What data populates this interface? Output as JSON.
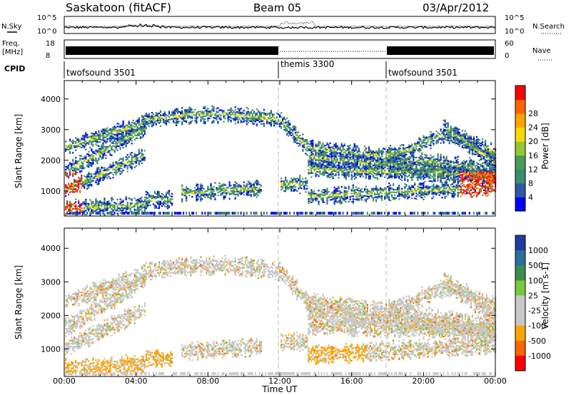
{
  "header": {
    "station": "Saskatoon (fitACF)",
    "beam": "Beam 05",
    "date": "03/Apr/2012"
  },
  "top_panel": {
    "left_label": "N.Sky",
    "right_label": "N.Search",
    "left_ticks": [
      "10^5",
      "10^0"
    ],
    "right_ticks": [
      "10^5",
      "10^0"
    ]
  },
  "freq_panel": {
    "left_label_1": "Freq.",
    "left_label_2": "[MHz]",
    "left_ticks": [
      "18",
      "8"
    ],
    "right_ticks": [
      "60",
      "0"
    ],
    "right_label": "Nave"
  },
  "cpid": {
    "label": "CPID",
    "segments": [
      {
        "name": "twofsound 3501",
        "start_hr": 0,
        "end_hr": 12
      },
      {
        "name": "themis 3300",
        "start_hr": 12,
        "end_hr": 18
      },
      {
        "name": "twofsound 3501",
        "start_hr": 18,
        "end_hr": 24
      }
    ]
  },
  "colors": {
    "power_scale": [
      "#0000ff",
      "#2d5aa0",
      "#3c8c6e",
      "#4b9b5a",
      "#96c832",
      "#ffd700",
      "#ffa500",
      "#ff6400",
      "#ff0000"
    ],
    "velocity_scale": [
      "#1e3ca0",
      "#2d6e9b",
      "#3c8c50",
      "#78c83c",
      "#c8c8c8",
      "#c8c8c8",
      "#ffa500",
      "#ff6400",
      "#ff0000"
    ]
  },
  "chart_data": [
    {
      "type": "heatmap",
      "name": "power",
      "ylabel": "Slant Range [km]",
      "xlim": [
        0,
        24
      ],
      "ylim": [
        180,
        4600
      ],
      "yticks": [
        "1000",
        "2000",
        "3000",
        "4000"
      ],
      "xticks": [
        "00:00",
        "04:00",
        "08:00",
        "12:00",
        "16:00",
        "20:00",
        "00:00"
      ],
      "colorbar": {
        "label": "Power [dB]",
        "ticks": [
          "4",
          "8",
          "12",
          "16",
          "20",
          "24",
          "28"
        ]
      }
    },
    {
      "type": "heatmap",
      "name": "velocity",
      "ylabel": "Slant Range [km]",
      "xlabel": "Time UT",
      "xlim": [
        0,
        24
      ],
      "ylim": [
        180,
        4600
      ],
      "yticks": [
        "1000",
        "2000",
        "3000",
        "4000"
      ],
      "xticks": [
        "00:00",
        "04:00",
        "08:00",
        "12:00",
        "16:00",
        "20:00",
        "00:00"
      ],
      "colorbar": {
        "label": "Velocity [m s-1]",
        "ticks": [
          "1000",
          "500",
          "100",
          "25",
          "-25",
          "-100",
          "-500",
          "-1000"
        ]
      }
    }
  ]
}
